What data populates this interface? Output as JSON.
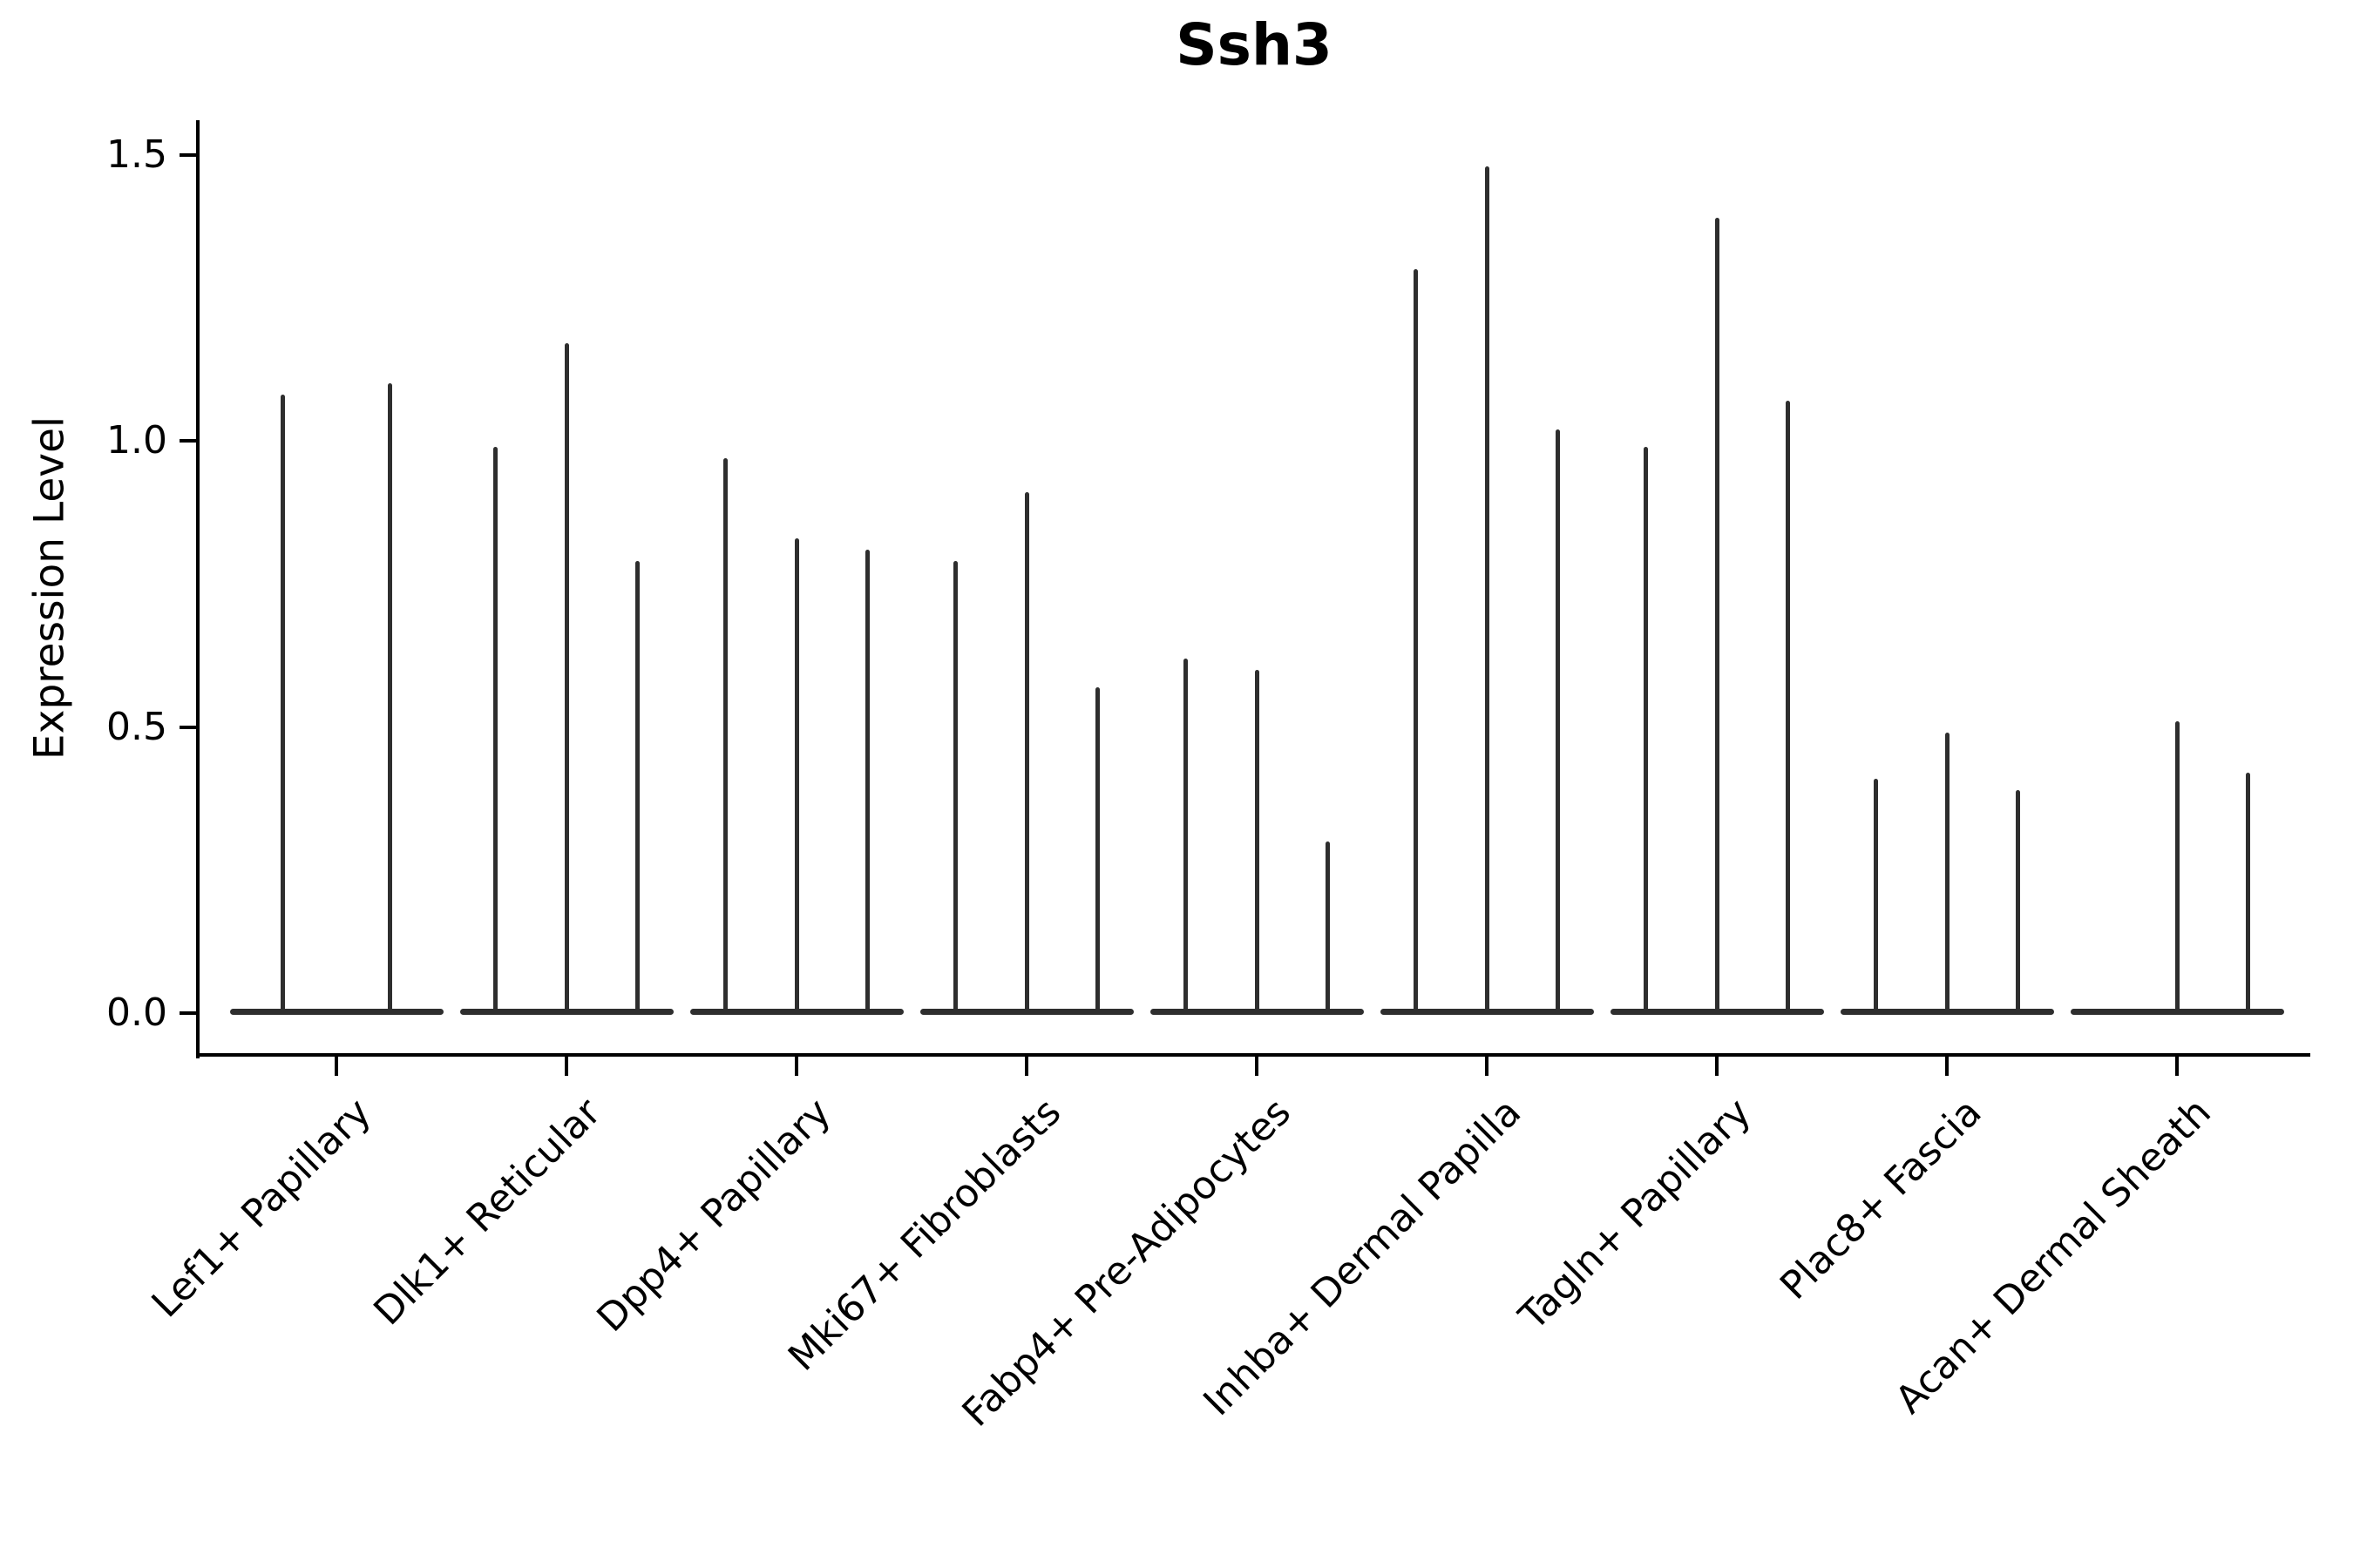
{
  "title": "Ssh3",
  "y_axis": {
    "label": "Expression Level",
    "tick_labels": [
      "0.0",
      "0.5",
      "1.0",
      "1.5"
    ]
  },
  "colors": {
    "violin": "#2e2e2e",
    "axis": "#000000",
    "text": "#000000",
    "background": "#ffffff"
  },
  "chart_data": {
    "type": "violin",
    "title": "Ssh3",
    "xlabel": "",
    "ylabel": "Expression Level",
    "ylim": [
      0,
      1.5
    ],
    "y_ticks": [
      0.0,
      0.5,
      1.0,
      1.5
    ],
    "grid": false,
    "legend": "none",
    "style": "very narrow spike-shaped violins with a wide flat base at 0; spike top = max expression",
    "categories": [
      "Lef1+ Papillary",
      "Dlk1+ Reticular",
      "Dpp4+ Papillary",
      "Mki67+ Fibroblasts",
      "Fabp4+ Pre-Adipocytes",
      "Inhba+ Dermal Papilla",
      "Tagln+ Papillary",
      "Plac8+ Fascia",
      "Acan+ Dermal Sheath"
    ],
    "series": [
      {
        "category": "Lef1+ Papillary",
        "violin_max_values": [
          1.08,
          1.1
        ]
      },
      {
        "category": "Dlk1+ Reticular",
        "violin_max_values": [
          0.99,
          1.17,
          0.79
        ]
      },
      {
        "category": "Dpp4+ Papillary",
        "violin_max_values": [
          0.97,
          0.83,
          0.81
        ]
      },
      {
        "category": "Mki67+ Fibroblasts",
        "violin_max_values": [
          0.79,
          0.91,
          0.57
        ]
      },
      {
        "category": "Fabp4+ Pre-Adipocytes",
        "violin_max_values": [
          0.62,
          0.6,
          0.3
        ]
      },
      {
        "category": "Inhba+ Dermal Papilla",
        "violin_max_values": [
          1.3,
          1.48,
          1.02
        ]
      },
      {
        "category": "Tagln+ Papillary",
        "violin_max_values": [
          0.99,
          1.39,
          1.07
        ]
      },
      {
        "category": "Plac8+ Fascia",
        "violin_max_values": [
          0.41,
          0.49,
          0.39
        ]
      },
      {
        "category": "Acan+ Dermal Sheath",
        "violin_max_values": [
          0.0,
          0.51,
          0.42
        ]
      }
    ]
  }
}
